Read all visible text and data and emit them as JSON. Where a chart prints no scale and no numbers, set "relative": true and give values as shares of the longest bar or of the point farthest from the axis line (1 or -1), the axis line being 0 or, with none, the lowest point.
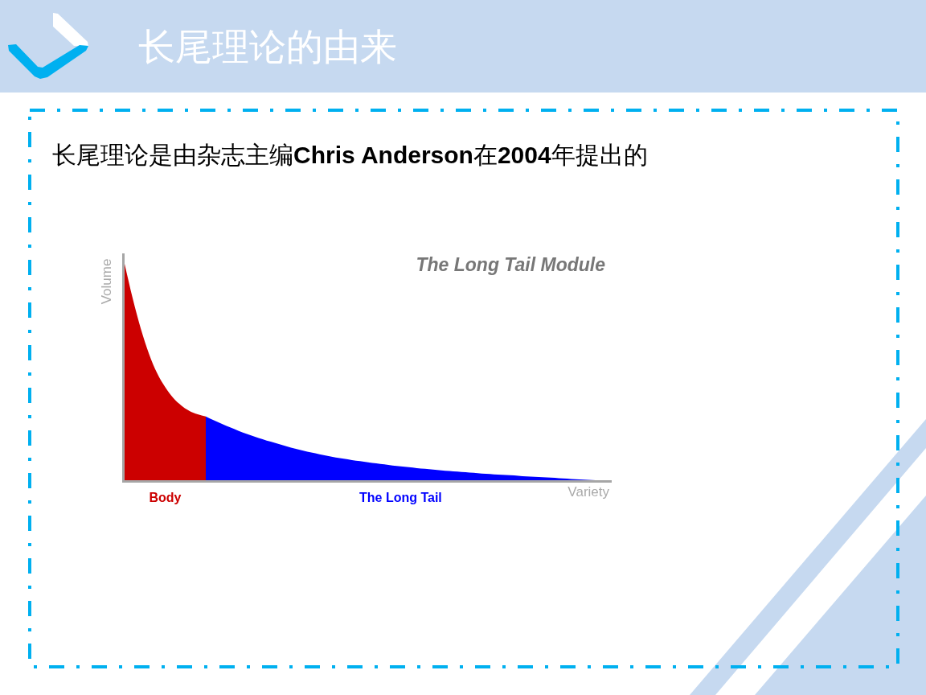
{
  "chart_data": {
    "type": "area",
    "title": "The Long Tail Module",
    "xlabel": "Variety",
    "ylabel": "Volume",
    "annotations": [
      "长尾理论的由来",
      "长尾理论是由杂志主编Chris Anderson在2004年提出的"
    ],
    "relative": true,
    "categories": [
      null,
      null,
      null,
      null,
      null,
      null,
      null,
      null,
      null,
      null,
      null,
      null,
      null,
      null,
      null,
      null,
      null,
      null,
      null,
      null,
      null,
      null,
      null,
      null,
      null,
      null,
      null,
      null,
      null,
      null,
      null,
      null,
      null,
      null,
      null,
      null,
      null,
      null,
      null,
      null,
      null,
      null,
      null,
      null,
      null,
      null,
      null,
      null,
      null,
      null,
      null,
      null,
      null,
      null,
      null,
      null,
      null,
      null,
      null,
      null,
      null
    ],
    "series": [
      {
        "name": "Body",
        "color": "#cc0000",
        "values": [
          1,
          0.84,
          0.7,
          0.585,
          0.495,
          0.43,
          0.38,
          0.345,
          0.32,
          0.305,
          0.295,
          null,
          null,
          null,
          null,
          null,
          null,
          null,
          null,
          null,
          null,
          null,
          null,
          null,
          null,
          null,
          null,
          null,
          null,
          null,
          null,
          null,
          null,
          null,
          null,
          null,
          null,
          null,
          null,
          null,
          null,
          null,
          null,
          null,
          null,
          null,
          null,
          null,
          null,
          null,
          null,
          null,
          null,
          null,
          null,
          null,
          null,
          null,
          null,
          null,
          null
        ]
      },
      {
        "name": "The Long Tail",
        "color": "#0000ff",
        "values": [
          null,
          null,
          null,
          null,
          null,
          null,
          null,
          null,
          null,
          null,
          0.295,
          0.277,
          0.26,
          0.244,
          0.229,
          0.215,
          0.202,
          0.19,
          0.178,
          0.167,
          0.156,
          0.146,
          0.137,
          0.128,
          0.12,
          0.112,
          0.105,
          0.099,
          0.093,
          0.088,
          0.083,
          0.078,
          0.073,
          0.068,
          0.064,
          0.06,
          0.056,
          0.053,
          0.049,
          0.046,
          0.043,
          0.04,
          0.037,
          0.034,
          0.031,
          0.029,
          0.026,
          0.024,
          0.022,
          0.019,
          0.017,
          0.015,
          0.013,
          0.011,
          0.008,
          0.006,
          0.004,
          0.002,
          0,
          null,
          null
        ]
      }
    ]
  }
}
